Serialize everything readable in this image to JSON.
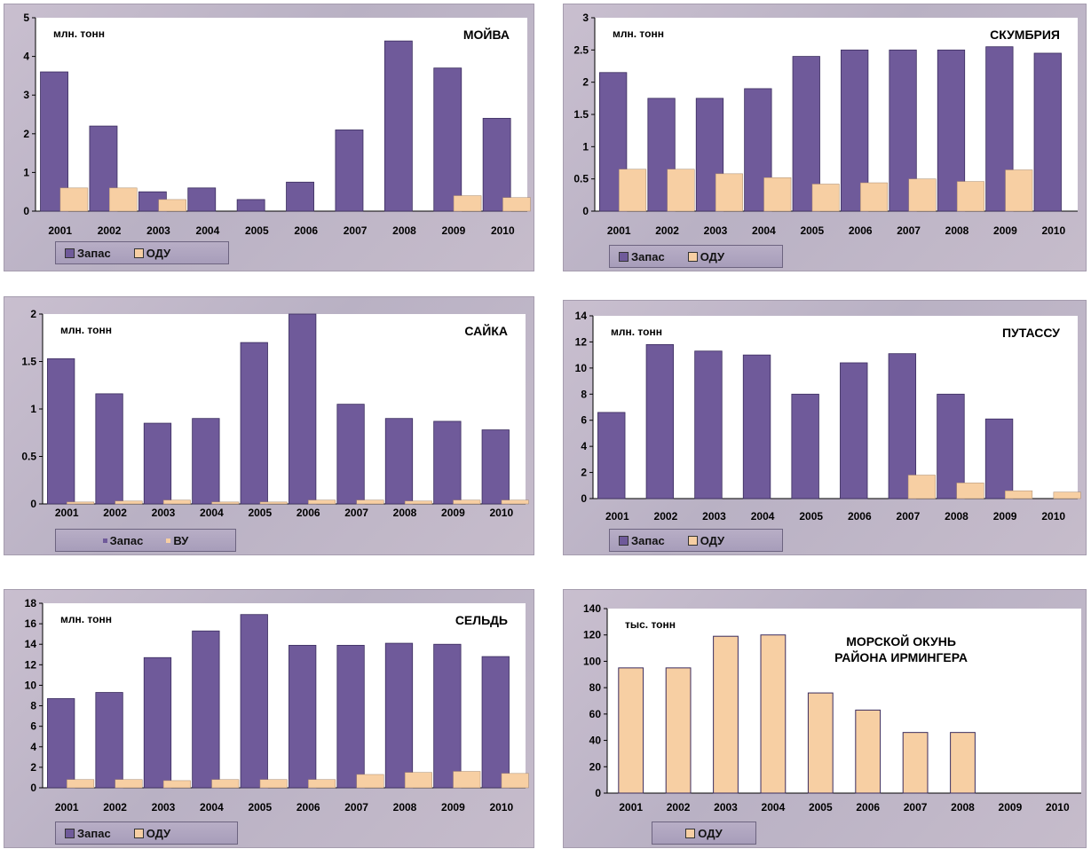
{
  "colors": {
    "stock": "#6f5a9a",
    "stock_edge": "#3a2c5e",
    "quota": "#f7cfa3",
    "quota_edge": "#a88a6e"
  },
  "chart_data": [
    {
      "id": "capelin",
      "type": "bar",
      "title": "МОЙВА",
      "unit": "млн. тонн",
      "categories": [
        "2001",
        "2002",
        "2003",
        "2004",
        "2005",
        "2006",
        "2007",
        "2008",
        "2009",
        "2010"
      ],
      "ylim": [
        0,
        5
      ],
      "yticks": [
        "0",
        "1",
        "2",
        "3",
        "4",
        "5"
      ],
      "series": [
        {
          "name": "Запас",
          "values": [
            3.6,
            2.2,
            0.5,
            0.6,
            0.3,
            0.75,
            2.1,
            4.4,
            3.7,
            2.4
          ]
        },
        {
          "name": "ОДУ",
          "values": [
            0.6,
            0.6,
            0.3,
            0,
            0,
            0,
            0,
            0,
            0.4,
            0.35
          ]
        }
      ]
    },
    {
      "id": "mackerel",
      "type": "bar",
      "title": "СКУМБРИЯ",
      "unit": "млн. тонн",
      "categories": [
        "2001",
        "2002",
        "2003",
        "2004",
        "2005",
        "2006",
        "2007",
        "2008",
        "2009",
        "2010"
      ],
      "ylim": [
        0,
        3
      ],
      "yticks": [
        "0",
        "0.5",
        "1",
        "1.5",
        "2",
        "2.5",
        "3"
      ],
      "series": [
        {
          "name": "Запас",
          "values": [
            2.15,
            1.75,
            1.75,
            1.9,
            2.4,
            2.5,
            2.5,
            2.5,
            2.55,
            2.45
          ]
        },
        {
          "name": "ОДУ",
          "values": [
            0.65,
            0.65,
            0.58,
            0.52,
            0.42,
            0.44,
            0.5,
            0.46,
            0.64,
            0
          ]
        }
      ]
    },
    {
      "id": "polar-cod",
      "type": "bar",
      "title": "САЙКА",
      "unit": "млн. тонн",
      "categories": [
        "2001",
        "2002",
        "2003",
        "2004",
        "2005",
        "2006",
        "2007",
        "2008",
        "2009",
        "2010"
      ],
      "ylim": [
        0,
        2
      ],
      "yticks": [
        "0",
        "0.5",
        "1",
        "1.5",
        "2"
      ],
      "series": [
        {
          "name": "Запас",
          "values": [
            1.53,
            1.16,
            0.85,
            0.9,
            1.7,
            2.0,
            1.05,
            0.9,
            0.87,
            0.78
          ]
        },
        {
          "name": "ВУ",
          "values": [
            0.02,
            0.03,
            0.04,
            0.02,
            0.02,
            0.04,
            0.04,
            0.03,
            0.04,
            0.04
          ]
        }
      ]
    },
    {
      "id": "blue-whiting",
      "type": "bar",
      "title": "ПУТАССУ",
      "unit": "млн. тонн",
      "categories": [
        "2001",
        "2002",
        "2003",
        "2004",
        "2005",
        "2006",
        "2007",
        "2008",
        "2009",
        "2010"
      ],
      "ylim": [
        0,
        14
      ],
      "yticks": [
        "0",
        "2",
        "4",
        "6",
        "8",
        "10",
        "12",
        "14"
      ],
      "series": [
        {
          "name": "Запас",
          "values": [
            6.6,
            11.8,
            11.3,
            11.0,
            8.0,
            10.4,
            11.1,
            8.0,
            6.1,
            0
          ]
        },
        {
          "name": "ОДУ",
          "values": [
            0,
            0,
            0,
            0,
            0,
            0,
            1.8,
            1.2,
            0.6,
            0.5
          ]
        }
      ]
    },
    {
      "id": "herring",
      "type": "bar",
      "title": "СЕЛЬДЬ",
      "unit": "млн. тонн",
      "categories": [
        "2001",
        "2002",
        "2003",
        "2004",
        "2005",
        "2006",
        "2007",
        "2008",
        "2009",
        "2010"
      ],
      "ylim": [
        0,
        18
      ],
      "yticks": [
        "0",
        "2",
        "4",
        "6",
        "8",
        "10",
        "12",
        "14",
        "16",
        "18"
      ],
      "series": [
        {
          "name": "Запас",
          "values": [
            8.7,
            9.3,
            12.7,
            15.3,
            16.9,
            13.9,
            13.9,
            14.1,
            14.0,
            12.8
          ]
        },
        {
          "name": "ОДУ",
          "values": [
            0.8,
            0.8,
            0.7,
            0.8,
            0.8,
            0.8,
            1.3,
            1.5,
            1.6,
            1.4
          ]
        }
      ]
    },
    {
      "id": "redfish",
      "type": "bar",
      "title": "МОРСКОЙ ОКУНЬ\nРАЙОНА ИРМИНГЕРА",
      "unit": "тыс. тонн",
      "categories": [
        "2001",
        "2002",
        "2003",
        "2004",
        "2005",
        "2006",
        "2007",
        "2008",
        "2009",
        "2010"
      ],
      "ylim": [
        0,
        140
      ],
      "yticks": [
        "0",
        "20",
        "40",
        "60",
        "80",
        "100",
        "120",
        "140"
      ],
      "series": [
        {
          "name": "ОДУ",
          "values": [
            95,
            95,
            119,
            120,
            76,
            63,
            46,
            46,
            0,
            0
          ]
        }
      ]
    }
  ]
}
